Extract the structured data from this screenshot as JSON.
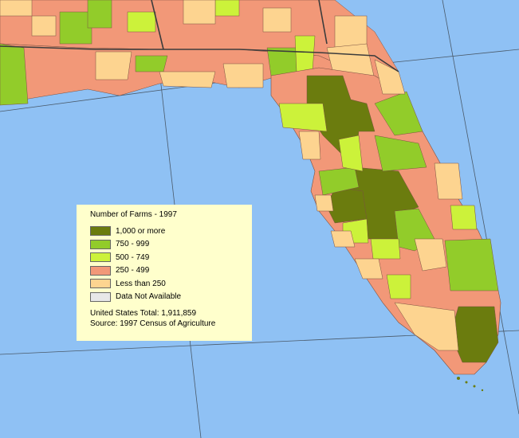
{
  "map": {
    "colors": {
      "ocean": "#8fc1f4",
      "gte_1000": "#6b7c0e",
      "r750_999": "#92cc2a",
      "r500_749": "#ccf23a",
      "r250_499": "#f29878",
      "lt_250": "#fdd490",
      "na": "#e8e8e8",
      "border": "#3c3c3c",
      "grid": "#4a5a6a"
    }
  },
  "legend": {
    "title": "Number of Farms - 1997",
    "items": [
      {
        "label": "1,000 or more",
        "color": "#6b7c0e"
      },
      {
        "label": "750 - 999",
        "color": "#92cc2a"
      },
      {
        "label": "500 - 749",
        "color": "#ccf23a"
      },
      {
        "label": "250 - 499",
        "color": "#f29878"
      },
      {
        "label": "Less than 250",
        "color": "#fdd490"
      },
      {
        "label": "Data Not Available",
        "color": "#e8e8e8"
      }
    ],
    "total": "United States Total:  1,911,859",
    "source": "Source:  1997 Census of Agriculture"
  }
}
